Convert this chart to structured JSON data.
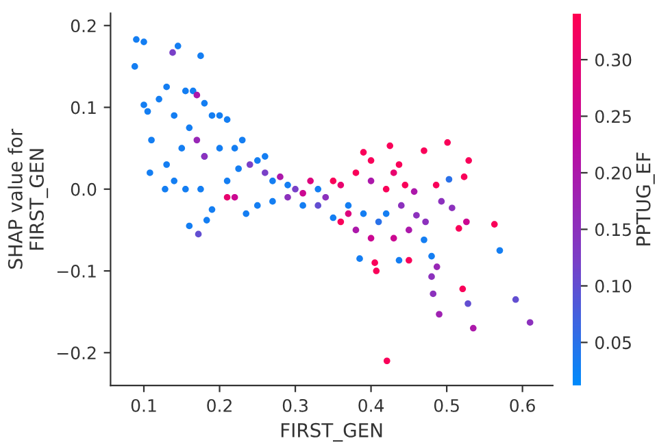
{
  "chart_data": {
    "type": "scatter",
    "xlabel": "FIRST_GEN",
    "ylabel": "SHAP value for\nFIRST_GEN",
    "clabel": "PPTUG_EF",
    "marker": "circle",
    "grid": false,
    "xlim": [
      0.056,
      0.64
    ],
    "ylim": [
      -0.24,
      0.215
    ],
    "xticks": [
      0.1,
      0.2,
      0.3,
      0.4,
      0.5,
      0.6
    ],
    "yticks": [
      {
        "value": -0.2,
        "label": "−0.2"
      },
      {
        "value": -0.1,
        "label": "−0.1"
      },
      {
        "value": 0,
        "label": "0.0"
      },
      {
        "value": 0.1,
        "label": "0.1"
      },
      {
        "value": 0.2,
        "label": "0.2"
      }
    ],
    "clim": [
      0.012,
      0.341
    ],
    "cticks": [
      {
        "value": 0.05,
        "label": "0.05"
      },
      {
        "value": 0.1,
        "label": "0.10"
      },
      {
        "value": 0.15,
        "label": "0.15"
      },
      {
        "value": 0.2,
        "label": "0.20"
      },
      {
        "value": 0.25,
        "label": "0.25"
      },
      {
        "value": 0.3,
        "label": "0.30"
      }
    ],
    "series": [
      {
        "x": [
          0.09,
          0.1,
          0.088,
          0.145,
          0.138,
          0.175,
          0.1,
          0.105,
          0.11,
          0.108,
          0.13,
          0.12,
          0.14,
          0.155,
          0.165,
          0.17,
          0.18,
          0.19,
          0.2,
          0.21,
          0.16,
          0.15,
          0.13,
          0.14,
          0.155,
          0.128,
          0.16,
          0.172,
          0.183,
          0.19,
          0.175,
          0.18,
          0.2,
          0.22,
          0.23,
          0.225,
          0.21,
          0.235,
          0.17,
          0.18,
          0.25,
          0.26,
          0.27,
          0.28,
          0.29,
          0.3,
          0.31,
          0.32,
          0.33,
          0.34,
          0.35,
          0.36,
          0.37,
          0.38,
          0.39,
          0.4,
          0.38,
          0.39,
          0.4,
          0.405,
          0.385,
          0.407,
          0.501,
          0.425,
          0.529,
          0.47,
          0.523,
          0.563,
          0.57,
          0.591,
          0.61,
          0.535,
          0.49,
          0.528,
          0.521,
          0.482,
          0.48,
          0.487,
          0.421,
          0.507,
          0.526,
          0.516,
          0.503,
          0.493,
          0.472,
          0.47,
          0.48,
          0.45,
          0.437,
          0.46,
          0.445,
          0.457,
          0.437,
          0.486,
          0.42,
          0.43,
          0.44,
          0.41,
          0.43,
          0.45,
          0.42,
          0.4,
          0.37,
          0.36,
          0.35,
          0.33,
          0.31,
          0.29,
          0.27,
          0.25,
          0.26,
          0.24,
          0.22,
          0.21
        ],
        "values": [
          0.183,
          0.18,
          0.15,
          0.175,
          0.167,
          0.163,
          0.103,
          0.095,
          0.06,
          0.02,
          0.125,
          0.11,
          0.09,
          0.12,
          0.12,
          0.115,
          0.105,
          0.09,
          0.09,
          0.085,
          0.075,
          0.05,
          0.03,
          0.01,
          0.0,
          0.0,
          -0.045,
          -0.055,
          -0.038,
          -0.025,
          0.0,
          0.04,
          0.05,
          0.05,
          0.06,
          0.025,
          0.01,
          -0.03,
          0.06,
          0.04,
          0.035,
          0.02,
          0.01,
          0.015,
          0.005,
          0.0,
          -0.005,
          0.01,
          0.0,
          -0.01,
          0.01,
          0.005,
          -0.02,
          0.02,
          0.045,
          0.035,
          -0.05,
          -0.03,
          -0.06,
          -0.09,
          -0.085,
          -0.1,
          0.057,
          0.053,
          0.035,
          0.047,
          0.015,
          -0.043,
          -0.075,
          -0.135,
          -0.163,
          -0.17,
          -0.153,
          -0.14,
          -0.122,
          -0.128,
          -0.107,
          -0.095,
          -0.21,
          -0.023,
          -0.04,
          -0.048,
          0.012,
          -0.015,
          -0.04,
          -0.062,
          -0.082,
          -0.087,
          -0.087,
          -0.032,
          0.005,
          -0.003,
          0.03,
          0.005,
          0.0,
          0.02,
          -0.02,
          -0.04,
          -0.06,
          -0.05,
          -0.03,
          0.01,
          -0.03,
          -0.04,
          -0.035,
          -0.02,
          -0.02,
          -0.01,
          -0.015,
          -0.02,
          0.04,
          0.03,
          -0.01,
          -0.01
        ],
        "cvalues": [
          0.03,
          0.03,
          0.03,
          0.03,
          0.12,
          0.03,
          0.03,
          0.03,
          0.03,
          0.03,
          0.03,
          0.03,
          0.03,
          0.03,
          0.03,
          0.2,
          0.03,
          0.03,
          0.03,
          0.03,
          0.03,
          0.03,
          0.03,
          0.03,
          0.03,
          0.03,
          0.03,
          0.1,
          0.03,
          0.03,
          0.03,
          0.03,
          0.03,
          0.03,
          0.03,
          0.03,
          0.03,
          0.03,
          0.17,
          0.15,
          0.03,
          0.12,
          0.03,
          0.2,
          0.03,
          0.12,
          0.25,
          0.28,
          0.03,
          0.15,
          0.33,
          0.3,
          0.03,
          0.33,
          0.33,
          0.33,
          0.2,
          0.03,
          0.25,
          0.33,
          0.03,
          0.33,
          0.33,
          0.33,
          0.33,
          0.33,
          0.33,
          0.33,
          0.03,
          0.1,
          0.15,
          0.2,
          0.18,
          0.1,
          0.33,
          0.15,
          0.15,
          0.17,
          0.33,
          0.15,
          0.25,
          0.33,
          0.05,
          0.15,
          0.15,
          0.03,
          0.03,
          0.33,
          0.03,
          0.15,
          0.33,
          0.2,
          0.33,
          0.33,
          0.33,
          0.3,
          0.15,
          0.05,
          0.25,
          0.2,
          0.03,
          0.2,
          0.28,
          0.33,
          0.03,
          0.1,
          0.03,
          0.15,
          0.03,
          0.03,
          0.03,
          0.12,
          0.25,
          0.3
        ]
      }
    ]
  }
}
